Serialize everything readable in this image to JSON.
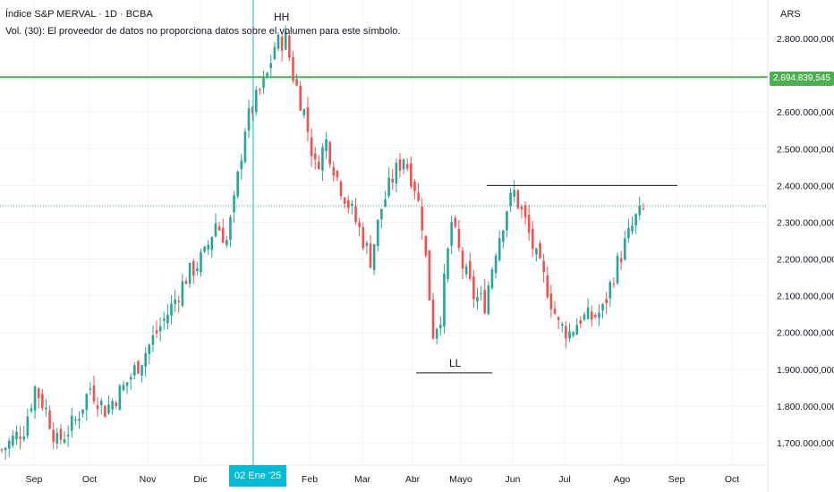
{
  "header": {
    "title": "Índice S&P MERVAL · 1D · BCBA",
    "volume_note": "Vol. (30): El proveedor de datos no proporciona datos sobre el volumen para este símbolo.",
    "currency": "ARS"
  },
  "crosshair": {
    "date_label": "02 Ene '25"
  },
  "colors": {
    "up": "#26a69a",
    "down": "#ef5350",
    "accent_green": "#4caf50",
    "crosshair": "#00bcd4",
    "grid": "#f0f3fa",
    "axis_text": "#131722"
  },
  "chart_data": {
    "type": "candlestick",
    "symbol": "Índice S&P MERVAL",
    "interval": "1D",
    "exchange": "BCBA",
    "x_ticks": [
      "Sep",
      "Oct",
      "Nov",
      "Dic",
      "Feb",
      "Mar",
      "Abr",
      "Mayo",
      "Jun",
      "Jul",
      "Ago",
      "Sep",
      "Oct"
    ],
    "y_ticks": [
      "2.800.000,000",
      "2.700.000,000",
      "2.600.000,000",
      "2.500.000,000",
      "2.400.000,000",
      "2.300.000,000",
      "2.200.000,000",
      "2.100.000,000",
      "2.000.000,000",
      "1.900.000,000",
      "1.800.000,000",
      "1.700.000,000"
    ],
    "ylim": [
      1660000,
      2880000
    ],
    "grid": true,
    "annotations": [
      {
        "text": "HH",
        "y": 2840000
      },
      {
        "text": "LL",
        "y": 1920000
      }
    ],
    "horizontal_line_value": "2.694.839,545",
    "resistance_level": 2400000,
    "support_level": 1890000,
    "last_price_level": 2345000,
    "close_path": [
      [
        1,
        1690000
      ],
      [
        6,
        1740000
      ],
      [
        9,
        1850000
      ],
      [
        12,
        1790000
      ],
      [
        15,
        1700000
      ],
      [
        20,
        1760000
      ],
      [
        24,
        1850000
      ],
      [
        28,
        1790000
      ],
      [
        33,
        1850000
      ],
      [
        38,
        1930000
      ],
      [
        42,
        2000000
      ],
      [
        46,
        2070000
      ],
      [
        50,
        2150000
      ],
      [
        55,
        2210000
      ],
      [
        58,
        2300000
      ],
      [
        61,
        2250000
      ],
      [
        63,
        2350000
      ],
      [
        66,
        2560000
      ],
      [
        68,
        2610000
      ],
      [
        72,
        2700000
      ],
      [
        74,
        2780000
      ],
      [
        77,
        2800000
      ],
      [
        79,
        2700000
      ],
      [
        82,
        2600000
      ],
      [
        85,
        2450000
      ],
      [
        88,
        2520000
      ],
      [
        91,
        2420000
      ],
      [
        94,
        2350000
      ],
      [
        97,
        2280000
      ],
      [
        100,
        2200000
      ],
      [
        103,
        2340000
      ],
      [
        106,
        2420000
      ],
      [
        109,
        2480000
      ],
      [
        112,
        2400000
      ],
      [
        114,
        2300000
      ],
      [
        117,
        2000000
      ],
      [
        119,
        2050000
      ],
      [
        122,
        2300000
      ],
      [
        125,
        2180000
      ],
      [
        128,
        2100000
      ],
      [
        131,
        2080000
      ],
      [
        134,
        2230000
      ],
      [
        137,
        2340000
      ],
      [
        139,
        2380000
      ],
      [
        142,
        2300000
      ],
      [
        145,
        2200000
      ],
      [
        148,
        2120000
      ],
      [
        151,
        2020000
      ],
      [
        154,
        2000000
      ],
      [
        157,
        2040000
      ],
      [
        160,
        2040000
      ],
      [
        163,
        2060000
      ],
      [
        166,
        2160000
      ],
      [
        169,
        2240000
      ],
      [
        172,
        2310000
      ],
      [
        174,
        2330000
      ]
    ]
  }
}
